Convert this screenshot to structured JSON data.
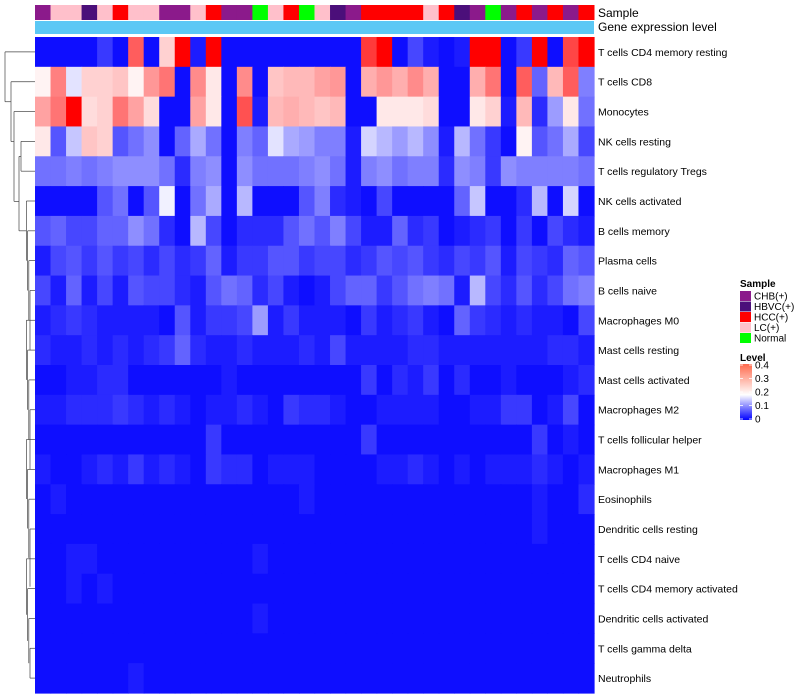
{
  "chart_data": {
    "type": "heatmap",
    "annotations": {
      "sample_label": "Sample",
      "gene_label": "Gene expression level"
    },
    "samples": [
      "CHB(+)",
      "LC(+)",
      "LC(+)",
      "HBVC(+)",
      "LC(+)",
      "HCC(+)",
      "LC(+)",
      "LC(+)",
      "CHB(+)",
      "CHB(+)",
      "LC(+)",
      "HCC(+)",
      "CHB(+)",
      "CHB(+)",
      "Normal",
      "LC(+)",
      "HCC(+)",
      "Normal",
      "LC(+)",
      "HBVC(+)",
      "CHB(+)",
      "HCC(+)",
      "HCC(+)",
      "HCC(+)",
      "HCC(+)",
      "LC(+)",
      "HCC(+)",
      "HBVC(+)",
      "CHB(+)",
      "Normal",
      "CHB(+)",
      "HCC(+)",
      "CHB(+)",
      "HCC(+)",
      "CHB(+)",
      "HCC(+)"
    ],
    "rows": [
      "T cells CD4 memory resting",
      "T cells CD8",
      "Monocytes",
      "NK cells resting",
      "T cells regulatory  Tregs",
      "NK cells activated",
      "B cells memory",
      "Plasma cells",
      "B cells naive",
      "Macrophages M0",
      "Mast cells resting",
      "Mast cells activated",
      "Macrophages M2",
      "T cells follicular helper",
      "Macrophages M1",
      "Eosinophils",
      "Dendritic cells resting",
      "T cells CD4 naive",
      "T cells CD4 memory activated",
      "Dendritic cells activated",
      "T cells gamma delta",
      "Neutrophils"
    ],
    "values": [
      [
        0.01,
        0.01,
        0.01,
        0.01,
        0.04,
        0.01,
        0.32,
        0.01,
        0.22,
        0.4,
        0.02,
        0.4,
        0.01,
        0.01,
        0.01,
        0.01,
        0.01,
        0.01,
        0.01,
        0.01,
        0.01,
        0.35,
        0.4,
        0.01,
        0.05,
        0.02,
        0.01,
        0.02,
        0.4,
        0.4,
        0.01,
        0.04,
        0.4,
        0.01,
        0.34,
        0.4
      ],
      [
        0.19,
        0.29,
        0.16,
        0.22,
        0.22,
        0.23,
        0.19,
        0.27,
        0.3,
        0.01,
        0.28,
        0.2,
        0.01,
        0.28,
        0.01,
        0.23,
        0.24,
        0.24,
        0.26,
        0.27,
        0.01,
        0.25,
        0.27,
        0.25,
        0.28,
        0.25,
        0.01,
        0.01,
        0.25,
        0.3,
        0.01,
        0.32,
        0.07,
        0.24,
        0.32,
        0.09
      ],
      [
        0.26,
        0.3,
        0.4,
        0.21,
        0.22,
        0.3,
        0.26,
        0.21,
        0.01,
        0.01,
        0.26,
        0.2,
        0.01,
        0.33,
        0.02,
        0.24,
        0.25,
        0.24,
        0.23,
        0.24,
        0.01,
        0.01,
        0.2,
        0.2,
        0.2,
        0.21,
        0.01,
        0.01,
        0.2,
        0.22,
        0.02,
        0.24,
        0.03,
        0.11,
        0.2,
        0.08
      ],
      [
        0.2,
        0.06,
        0.14,
        0.23,
        0.22,
        0.06,
        0.08,
        0.1,
        0.01,
        0.07,
        0.12,
        0.08,
        0.01,
        0.09,
        0.07,
        0.16,
        0.12,
        0.11,
        0.09,
        0.09,
        0.02,
        0.15,
        0.13,
        0.11,
        0.13,
        0.1,
        0.02,
        0.13,
        0.08,
        0.04,
        0.01,
        0.19,
        0.06,
        0.08,
        0.12,
        0.05
      ],
      [
        0.08,
        0.08,
        0.09,
        0.08,
        0.09,
        0.1,
        0.1,
        0.1,
        0.08,
        0.03,
        0.09,
        0.1,
        0.01,
        0.1,
        0.08,
        0.08,
        0.08,
        0.09,
        0.1,
        0.08,
        0.02,
        0.09,
        0.1,
        0.08,
        0.09,
        0.09,
        0.03,
        0.1,
        0.09,
        0.04,
        0.1,
        0.09,
        0.09,
        0.09,
        0.09,
        0.08
      ],
      [
        0.01,
        0.01,
        0.01,
        0.01,
        0.06,
        0.08,
        0.01,
        0.06,
        0.17,
        0.01,
        0.08,
        0.12,
        0.01,
        0.13,
        0.01,
        0.01,
        0.01,
        0.06,
        0.09,
        0.03,
        0.02,
        0.01,
        0.05,
        0.01,
        0.01,
        0.01,
        0.01,
        0.07,
        0.14,
        0.01,
        0.01,
        0.03,
        0.13,
        0.01,
        0.15,
        0.01
      ],
      [
        0.06,
        0.07,
        0.05,
        0.05,
        0.07,
        0.07,
        0.1,
        0.08,
        0.03,
        0.01,
        0.13,
        0.05,
        0.01,
        0.03,
        0.03,
        0.03,
        0.06,
        0.08,
        0.06,
        0.09,
        0.05,
        0.02,
        0.02,
        0.07,
        0.03,
        0.04,
        0.01,
        0.02,
        0.03,
        0.04,
        0.01,
        0.04,
        0.01,
        0.05,
        0.03,
        0.02
      ],
      [
        0.02,
        0.05,
        0.06,
        0.04,
        0.06,
        0.04,
        0.05,
        0.03,
        0.05,
        0.03,
        0.04,
        0.07,
        0.02,
        0.04,
        0.04,
        0.06,
        0.06,
        0.04,
        0.05,
        0.05,
        0.03,
        0.04,
        0.06,
        0.05,
        0.06,
        0.04,
        0.03,
        0.05,
        0.04,
        0.06,
        0.02,
        0.05,
        0.04,
        0.03,
        0.07,
        0.06
      ],
      [
        0.05,
        0.02,
        0.07,
        0.02,
        0.05,
        0.02,
        0.06,
        0.05,
        0.05,
        0.03,
        0.02,
        0.06,
        0.08,
        0.07,
        0.03,
        0.05,
        0.02,
        0.01,
        0.02,
        0.05,
        0.07,
        0.07,
        0.04,
        0.06,
        0.08,
        0.09,
        0.08,
        0.02,
        0.13,
        0.05,
        0.03,
        0.06,
        0.03,
        0.05,
        0.08,
        0.09
      ],
      [
        0.02,
        0.03,
        0.04,
        0.03,
        0.02,
        0.02,
        0.02,
        0.02,
        0.01,
        0.06,
        0.02,
        0.04,
        0.04,
        0.05,
        0.11,
        0.02,
        0.04,
        0.02,
        0.02,
        0.02,
        0.01,
        0.04,
        0.02,
        0.03,
        0.04,
        0.02,
        0.01,
        0.07,
        0.04,
        0.03,
        0.02,
        0.03,
        0.02,
        0.02,
        0.01,
        0.05
      ],
      [
        0.03,
        0.02,
        0.02,
        0.03,
        0.02,
        0.03,
        0.02,
        0.03,
        0.04,
        0.07,
        0.03,
        0.02,
        0.02,
        0.03,
        0.02,
        0.02,
        0.02,
        0.03,
        0.02,
        0.05,
        0.02,
        0.02,
        0.02,
        0.02,
        0.03,
        0.03,
        0.02,
        0.02,
        0.02,
        0.02,
        0.02,
        0.02,
        0.02,
        0.03,
        0.03,
        0.02
      ],
      [
        0.01,
        0.01,
        0.02,
        0.02,
        0.03,
        0.03,
        0.01,
        0.01,
        0.01,
        0.01,
        0.01,
        0.01,
        0.02,
        0.01,
        0.01,
        0.01,
        0.01,
        0.01,
        0.01,
        0.01,
        0.01,
        0.04,
        0.01,
        0.03,
        0.02,
        0.04,
        0.01,
        0.03,
        0.01,
        0.01,
        0.02,
        0.01,
        0.01,
        0.01,
        0.02,
        0.03
      ],
      [
        0.02,
        0.02,
        0.03,
        0.03,
        0.03,
        0.04,
        0.03,
        0.02,
        0.03,
        0.02,
        0.01,
        0.02,
        0.02,
        0.03,
        0.02,
        0.01,
        0.04,
        0.03,
        0.03,
        0.02,
        0.01,
        0.01,
        0.02,
        0.02,
        0.02,
        0.02,
        0.01,
        0.01,
        0.02,
        0.02,
        0.04,
        0.04,
        0.01,
        0.02,
        0.05,
        0.01
      ],
      [
        0.01,
        0.01,
        0.01,
        0.01,
        0.01,
        0.01,
        0.01,
        0.01,
        0.01,
        0.01,
        0.01,
        0.04,
        0.01,
        0.01,
        0.01,
        0.01,
        0.01,
        0.01,
        0.01,
        0.01,
        0.01,
        0.04,
        0.01,
        0.01,
        0.01,
        0.01,
        0.01,
        0.01,
        0.01,
        0.01,
        0.01,
        0.01,
        0.04,
        0.01,
        0.02,
        0.01
      ],
      [
        0.02,
        0.01,
        0.01,
        0.02,
        0.03,
        0.02,
        0.04,
        0.02,
        0.03,
        0.02,
        0.01,
        0.04,
        0.03,
        0.03,
        0.01,
        0.02,
        0.02,
        0.02,
        0.01,
        0.01,
        0.01,
        0.01,
        0.02,
        0.02,
        0.03,
        0.02,
        0.01,
        0.02,
        0.01,
        0.02,
        0.02,
        0.02,
        0.03,
        0.02,
        0.01,
        0.02
      ],
      [
        0.01,
        0.02,
        0.01,
        0.01,
        0.01,
        0.01,
        0.01,
        0.01,
        0.01,
        0.01,
        0.01,
        0.01,
        0.01,
        0.01,
        0.01,
        0.01,
        0.01,
        0.02,
        0.01,
        0.01,
        0.01,
        0.01,
        0.01,
        0.01,
        0.01,
        0.01,
        0.01,
        0.01,
        0.01,
        0.01,
        0.01,
        0.01,
        0.02,
        0.01,
        0.01,
        0.03
      ],
      [
        0.01,
        0.01,
        0.01,
        0.01,
        0.01,
        0.01,
        0.01,
        0.01,
        0.01,
        0.01,
        0.01,
        0.01,
        0.01,
        0.01,
        0.01,
        0.01,
        0.01,
        0.01,
        0.01,
        0.01,
        0.01,
        0.01,
        0.01,
        0.01,
        0.01,
        0.01,
        0.01,
        0.01,
        0.01,
        0.01,
        0.01,
        0.01,
        0.02,
        0.01,
        0.01,
        0.01
      ],
      [
        0.01,
        0.01,
        0.02,
        0.02,
        0.01,
        0.01,
        0.01,
        0.01,
        0.01,
        0.01,
        0.01,
        0.01,
        0.01,
        0.01,
        0.02,
        0.01,
        0.01,
        0.01,
        0.01,
        0.01,
        0.01,
        0.01,
        0.01,
        0.01,
        0.01,
        0.01,
        0.01,
        0.01,
        0.01,
        0.01,
        0.01,
        0.01,
        0.01,
        0.01,
        0.01,
        0.01
      ],
      [
        0.01,
        0.01,
        0.02,
        0.01,
        0.02,
        0.01,
        0.01,
        0.01,
        0.01,
        0.01,
        0.01,
        0.01,
        0.01,
        0.01,
        0.01,
        0.01,
        0.01,
        0.01,
        0.01,
        0.01,
        0.01,
        0.01,
        0.01,
        0.01,
        0.01,
        0.01,
        0.01,
        0.01,
        0.01,
        0.01,
        0.01,
        0.01,
        0.01,
        0.01,
        0.01,
        0.01
      ],
      [
        0.01,
        0.01,
        0.01,
        0.01,
        0.01,
        0.01,
        0.01,
        0.01,
        0.01,
        0.01,
        0.01,
        0.01,
        0.01,
        0.01,
        0.02,
        0.01,
        0.01,
        0.01,
        0.01,
        0.01,
        0.01,
        0.01,
        0.01,
        0.01,
        0.01,
        0.01,
        0.01,
        0.01,
        0.01,
        0.01,
        0.01,
        0.01,
        0.01,
        0.01,
        0.01,
        0.01
      ],
      [
        0.01,
        0.01,
        0.01,
        0.01,
        0.01,
        0.01,
        0.01,
        0.01,
        0.01,
        0.01,
        0.01,
        0.01,
        0.01,
        0.01,
        0.01,
        0.01,
        0.01,
        0.01,
        0.01,
        0.01,
        0.01,
        0.01,
        0.01,
        0.01,
        0.01,
        0.01,
        0.01,
        0.01,
        0.01,
        0.01,
        0.01,
        0.01,
        0.01,
        0.01,
        0.01,
        0.01
      ],
      [
        0.01,
        0.01,
        0.01,
        0.01,
        0.01,
        0.01,
        0.02,
        0.01,
        0.01,
        0.01,
        0.01,
        0.01,
        0.01,
        0.01,
        0.01,
        0.01,
        0.01,
        0.01,
        0.01,
        0.01,
        0.01,
        0.01,
        0.01,
        0.01,
        0.01,
        0.01,
        0.01,
        0.01,
        0.01,
        0.01,
        0.01,
        0.01,
        0.01,
        0.01,
        0.01,
        0.01
      ]
    ],
    "legend_sample": {
      "title": "Sample",
      "items": [
        {
          "label": "CHB(+)",
          "color": "#8b1a8b"
        },
        {
          "label": "HBVC(+)",
          "color": "#4b0f7a"
        },
        {
          "label": "HCC(+)",
          "color": "#ff0000"
        },
        {
          "label": "LC(+)",
          "color": "#ffc0cb"
        },
        {
          "label": "Normal",
          "color": "#00ff00"
        }
      ]
    },
    "legend_level": {
      "title": "Level",
      "ticks": [
        {
          "label": "0.4",
          "value": 0.4
        },
        {
          "label": "0.3",
          "value": 0.3
        },
        {
          "label": "0.2",
          "value": 0.2
        },
        {
          "label": "0.1",
          "value": 0.1
        },
        {
          "label": "0",
          "value": 0
        }
      ],
      "range": [
        0,
        0.4
      ]
    },
    "gene_bar_color": "#5bc8f5",
    "colors": {
      "low": "#0000ff",
      "mid": "#ffffff",
      "high": "#ff0000"
    }
  }
}
